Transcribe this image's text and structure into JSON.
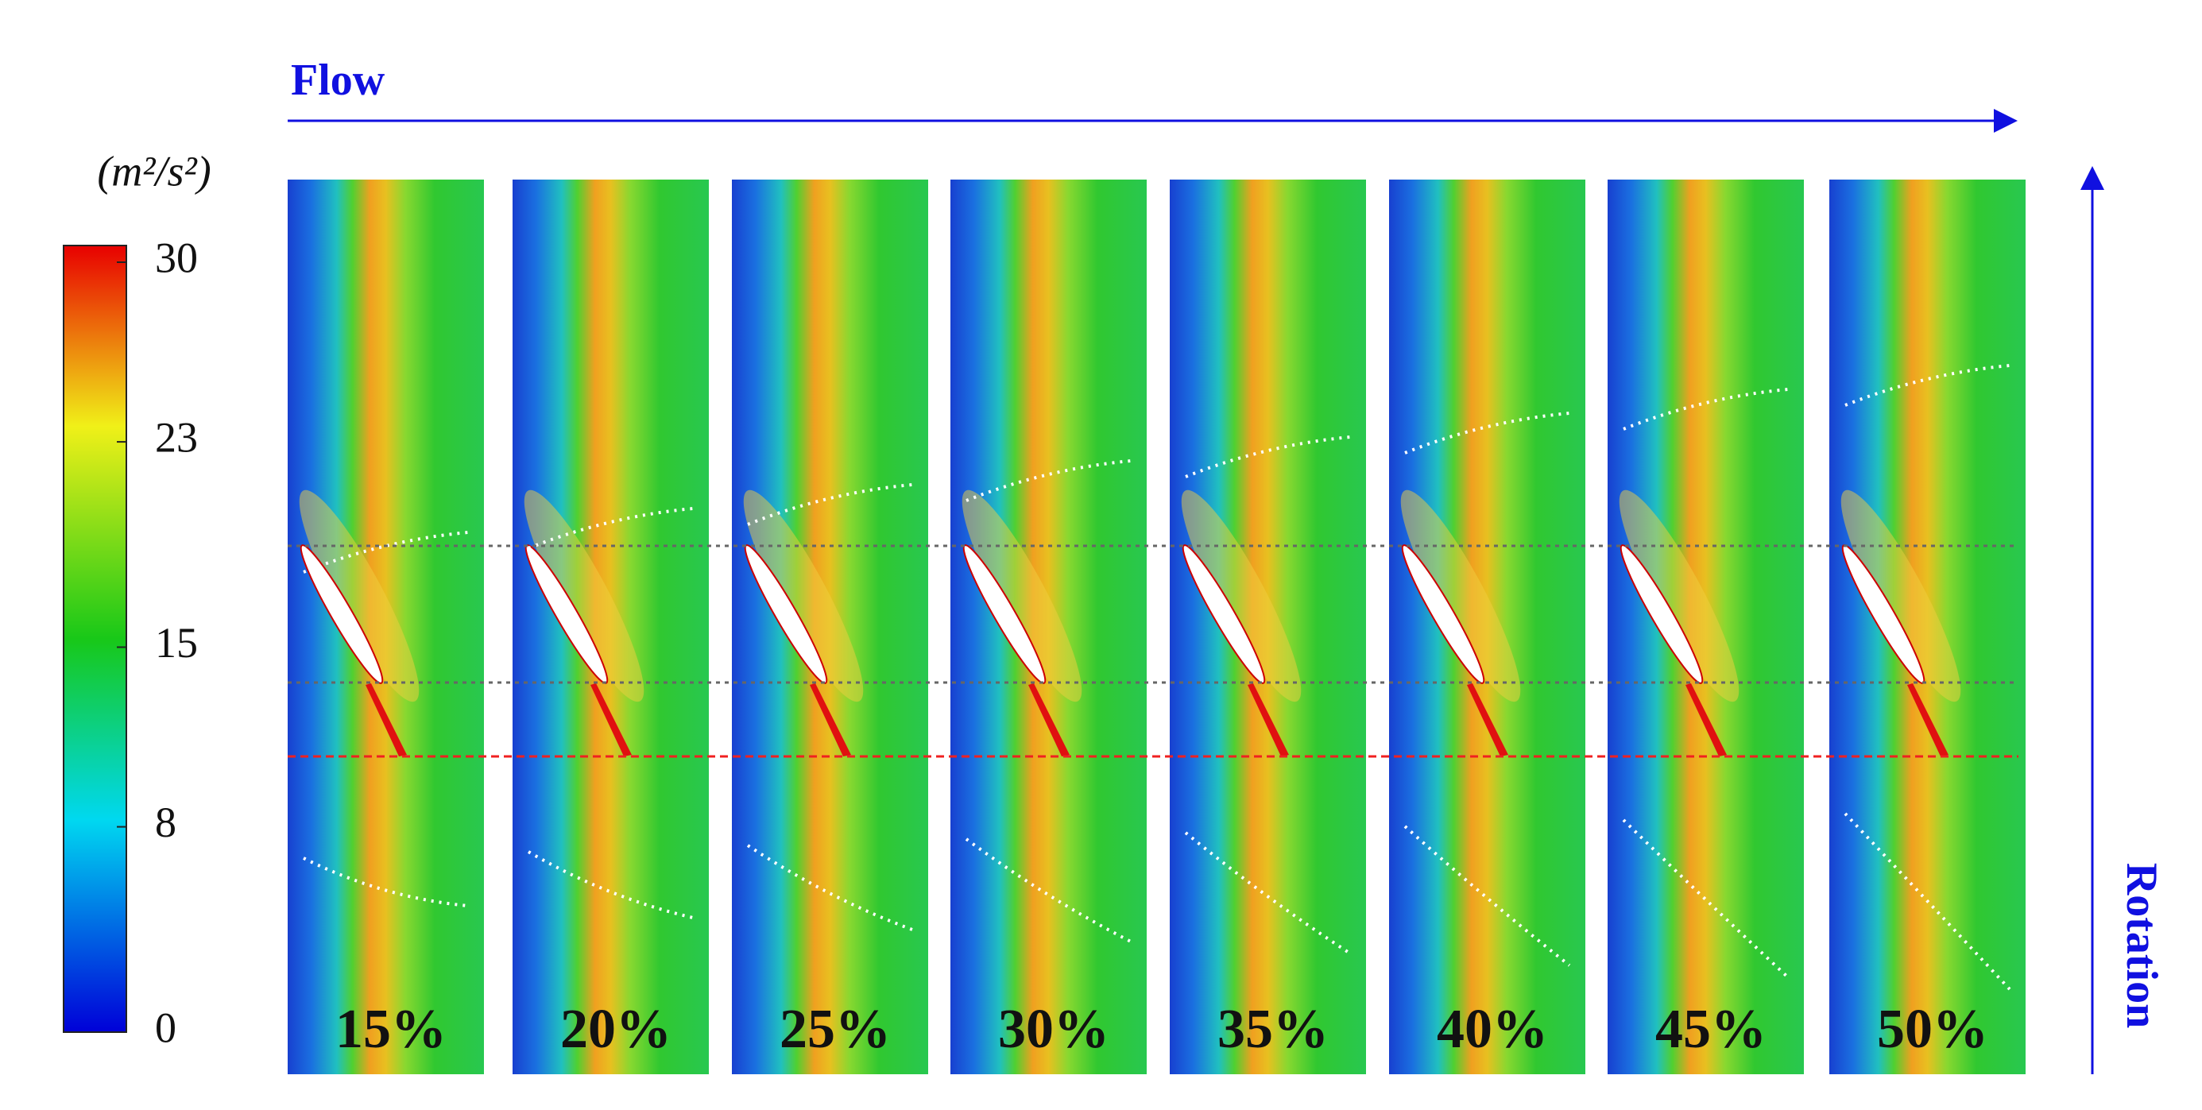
{
  "flow_label": "Flow",
  "rotation_label": "Rotation",
  "colorbar": {
    "unit": "(m²/s²)",
    "lim": [
      0,
      30
    ],
    "ticks": [
      0,
      8,
      15,
      23,
      30
    ]
  },
  "panels": [
    "15%",
    "20%",
    "25%",
    "30%",
    "35%",
    "40%",
    "45%",
    "50%"
  ]
}
